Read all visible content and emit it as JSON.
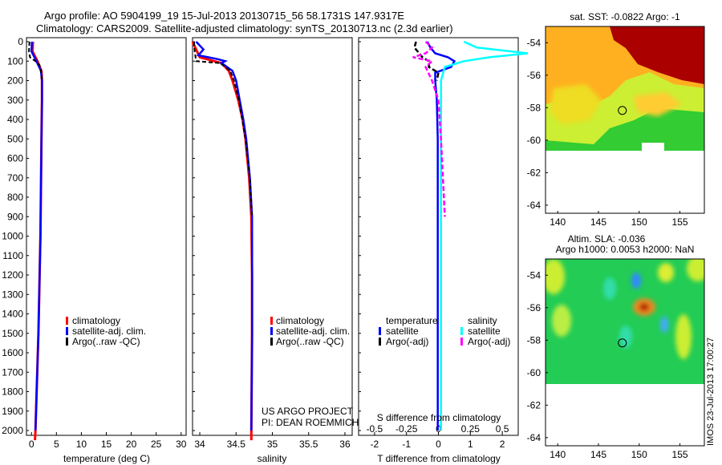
{
  "header": {
    "line1": "Argo profile: AO 5904199_19 15-Jul-2013 20130715_56 58.1731S 147.9317E",
    "line2": "Climatology: CARS2009. Satellite-adjusted climatology: synTS_20130713.nc (2.3d earlier)"
  },
  "colors": {
    "climatology": "#ff0000",
    "satellite": "#0000ff",
    "argo": "#000000",
    "satellite_salinity": "#00ffff",
    "argo_salinity": "#ff00ff"
  },
  "depth_axis": {
    "ticks": [
      "0",
      "100",
      "200",
      "300",
      "400",
      "500",
      "600",
      "700",
      "800",
      "900",
      "1000",
      "1100",
      "1200",
      "1300",
      "1400",
      "1500",
      "1600",
      "1700",
      "1800",
      "1900",
      "2000"
    ],
    "ylim": [
      0,
      2060
    ]
  },
  "panels": {
    "temperature": {
      "xlabel": "temperature (deg C)",
      "xticks": [
        "0",
        "5",
        "10",
        "15",
        "20",
        "25",
        "30"
      ],
      "legend": [
        "climatology",
        "satellite-adj. clim.",
        "Argo(..raw -QC)"
      ]
    },
    "salinity": {
      "xlabel": "salinity",
      "xticks": [
        "34",
        "34.5",
        "35",
        "35.5",
        "36"
      ],
      "legend": [
        "climatology",
        "satellite-adj. clim.",
        "Argo(..raw -QC)"
      ],
      "credit1": "US ARGO PROJECT",
      "credit2": "PI: DEAN ROEMMICH"
    },
    "difference": {
      "xlabel": "T difference from climatology",
      "xticks": [
        "-2",
        "-1",
        "0",
        "1",
        "2"
      ],
      "top_label": "S difference from climatology",
      "top_ticks": [
        "-0.5",
        "-0.25",
        "0",
        "0.25",
        "0.5"
      ],
      "legend_t_title": "temperature",
      "legend_s_title": "salinity",
      "legend_t": [
        "satellite",
        "Argo(-adj)"
      ],
      "legend_s": [
        "satellite",
        "Argo(-adj)"
      ]
    }
  },
  "maps": {
    "sst": {
      "title": "sat. SST: -0.0822  Argo: -1",
      "yticks": [
        "-54",
        "-56",
        "-58",
        "-60",
        "-62",
        "-64"
      ],
      "xticks": [
        "140",
        "145",
        "150",
        "155"
      ]
    },
    "sla": {
      "title1": "Altim. SLA: -0.036",
      "title2": "Argo h1000: 0.0053 h2000: NaN",
      "yticks": [
        "-54",
        "-56",
        "-58",
        "-60",
        "-62",
        "-64"
      ],
      "xticks": [
        "140",
        "145",
        "150",
        "155"
      ]
    },
    "float_position": {
      "lon": 147.93,
      "lat": -58.17
    }
  },
  "footer": {
    "stamp": "IMOS 23-Jul-2013 17:00:27"
  },
  "chart_data": [
    {
      "type": "line",
      "title": "",
      "xlabel": "temperature (deg C)",
      "ylabel": "",
      "xlim": [
        -1,
        31
      ],
      "ylim": [
        2060,
        0
      ],
      "series": [
        {
          "name": "climatology",
          "depth": [
            0,
            50,
            100,
            150,
            200,
            300,
            500,
            1000,
            1500,
            2000,
            2050
          ],
          "values": [
            0.3,
            0.2,
            1.2,
            2.0,
            2.1,
            2.1,
            2.0,
            1.8,
            1.4,
            0.8,
            0.7
          ]
        },
        {
          "name": "satellite-adj. clim.",
          "depth": [
            0,
            50,
            100,
            150,
            200,
            300,
            500,
            1000,
            1500,
            2000
          ],
          "values": [
            0.1,
            0.0,
            1.0,
            1.9,
            2.1,
            2.1,
            2.0,
            1.8,
            1.4,
            0.8
          ]
        },
        {
          "name": "Argo(..raw -QC)",
          "depth": [
            0,
            50,
            80,
            100,
            120,
            150,
            200
          ],
          "values": [
            -0.4,
            -0.5,
            -0.3,
            0.8,
            1.6,
            1.9,
            2.1
          ]
        }
      ]
    },
    {
      "type": "line",
      "title": "",
      "xlabel": "salinity",
      "ylabel": "",
      "xlim": [
        33.9,
        36.1
      ],
      "ylim": [
        2060,
        0
      ],
      "series": [
        {
          "name": "climatology",
          "depth": [
            0,
            40,
            80,
            100,
            110,
            150,
            200,
            300,
            400,
            500,
            700,
            900,
            1200,
            1500,
            2000,
            2050
          ],
          "values": [
            33.9,
            33.95,
            34.0,
            34.2,
            34.3,
            34.4,
            34.45,
            34.53,
            34.59,
            34.63,
            34.68,
            34.71,
            34.72,
            34.72,
            34.71,
            34.71
          ]
        },
        {
          "name": "satellite-adj. clim.",
          "depth": [
            0,
            40,
            70,
            90,
            100,
            110,
            150,
            200,
            300,
            400,
            500,
            700,
            900,
            1200,
            1500,
            2000
          ],
          "values": [
            33.95,
            34.05,
            33.98,
            34.25,
            34.35,
            34.3,
            34.45,
            34.5,
            34.55,
            34.6,
            34.64,
            34.69,
            34.72,
            34.72,
            34.72,
            34.71
          ]
        },
        {
          "name": "Argo(..raw -QC)",
          "depth": [
            0,
            50,
            100,
            110,
            150,
            200,
            300,
            500,
            700,
            900
          ],
          "values": [
            33.92,
            33.93,
            33.95,
            34.28,
            34.42,
            34.47,
            34.54,
            34.63,
            34.69,
            34.72
          ]
        }
      ]
    },
    {
      "type": "line",
      "title": "",
      "xlabel": "T difference from climatology",
      "ylabel": "",
      "xlim": [
        -2.5,
        2.5
      ],
      "ylim": [
        2060,
        0
      ],
      "series": [
        {
          "name": "temperature satellite",
          "depth": [
            0,
            30,
            60,
            80,
            100,
            130,
            160,
            200,
            300,
            500,
            1000,
            1500,
            2000
          ],
          "values": [
            -0.35,
            -0.25,
            -0.1,
            0.3,
            0.5,
            0.4,
            -0.1,
            -0.1,
            -0.05,
            -0.02,
            -0.02,
            -0.02,
            -0.02
          ]
        },
        {
          "name": "temperature Argo(-adj)",
          "depth": [
            0,
            30,
            60,
            80,
            100,
            130,
            160,
            200
          ],
          "values": [
            -0.7,
            -0.75,
            -0.6,
            -0.5,
            -0.3,
            -0.3,
            0.0,
            -0.05
          ]
        },
        {
          "name": "salinity satellite",
          "depth": [
            0,
            30,
            60,
            80,
            100,
            130,
            200,
            300,
            500,
            1000,
            1500,
            2000
          ],
          "values": [
            0.2,
            0.3,
            0.7,
            0.4,
            0.2,
            0.05,
            0.02,
            0.02,
            0.02,
            0.02,
            0.02,
            0.02
          ]
        },
        {
          "name": "salinity Argo(-adj)",
          "depth": [
            0,
            30,
            60,
            80,
            100,
            130,
            200,
            300,
            500,
            900
          ],
          "values": [
            -0.1,
            -0.05,
            -0.1,
            -0.2,
            -0.05,
            -0.1,
            -0.05,
            0.0,
            0.02,
            0.05
          ]
        }
      ]
    }
  ]
}
